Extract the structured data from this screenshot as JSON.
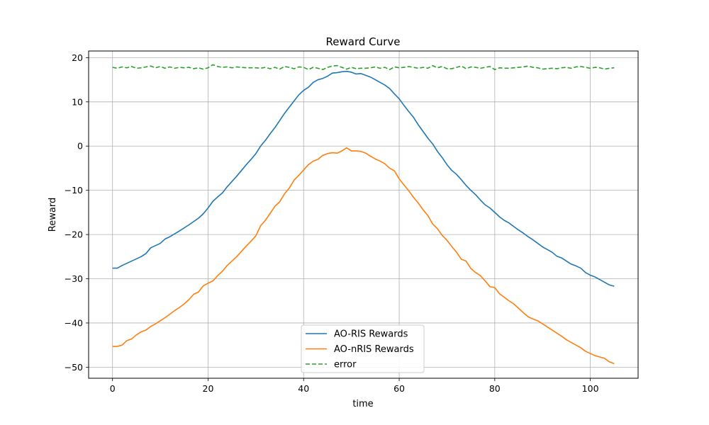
{
  "chart_data": {
    "type": "line",
    "title": "Reward Curve",
    "xlabel": "time",
    "ylabel": "Reward",
    "xlim": [
      -5,
      110
    ],
    "ylim": [
      -52.5,
      21.5
    ],
    "xticks": [
      0,
      20,
      40,
      60,
      80,
      100
    ],
    "yticks": [
      -50,
      -40,
      -30,
      -20,
      -10,
      0,
      10,
      20
    ],
    "grid": true,
    "legend_position": "bottom-center",
    "series": [
      {
        "name": "AO-RIS Rewards",
        "color": "#1f77b4",
        "style": "solid",
        "points": [
          [
            0,
            -27.6
          ],
          [
            1,
            -27.6
          ],
          [
            2,
            -27.0
          ],
          [
            4,
            -26.0
          ],
          [
            6,
            -25.0
          ],
          [
            7,
            -24.3
          ],
          [
            8,
            -23.0
          ],
          [
            10,
            -22.0
          ],
          [
            11,
            -21.0
          ],
          [
            12,
            -20.5
          ],
          [
            14,
            -19.2
          ],
          [
            16,
            -17.8
          ],
          [
            18,
            -16.3
          ],
          [
            19,
            -15.3
          ],
          [
            20,
            -14.0
          ],
          [
            21,
            -12.5
          ],
          [
            22,
            -11.5
          ],
          [
            23,
            -10.6
          ],
          [
            24,
            -9.2
          ],
          [
            25,
            -8.0
          ],
          [
            26,
            -6.8
          ],
          [
            27,
            -5.5
          ],
          [
            28,
            -4.2
          ],
          [
            29,
            -3.0
          ],
          [
            30,
            -1.7
          ],
          [
            31,
            0.0
          ],
          [
            32,
            1.3
          ],
          [
            33,
            2.8
          ],
          [
            34,
            4.2
          ],
          [
            35,
            5.8
          ],
          [
            36,
            7.4
          ],
          [
            37,
            8.8
          ],
          [
            38,
            10.2
          ],
          [
            39,
            11.6
          ],
          [
            40,
            12.6
          ],
          [
            41,
            13.3
          ],
          [
            42,
            14.4
          ],
          [
            43,
            15.0
          ],
          [
            44,
            15.3
          ],
          [
            45,
            15.8
          ],
          [
            46,
            16.5
          ],
          [
            47,
            16.6
          ],
          [
            48,
            16.8
          ],
          [
            49,
            16.9
          ],
          [
            50,
            16.7
          ],
          [
            51,
            16.3
          ],
          [
            52,
            16.4
          ],
          [
            53,
            16.0
          ],
          [
            54,
            15.6
          ],
          [
            55,
            15.0
          ],
          [
            56,
            14.4
          ],
          [
            57,
            13.8
          ],
          [
            58,
            13.0
          ],
          [
            59,
            11.8
          ],
          [
            60,
            10.7
          ],
          [
            61,
            9.2
          ],
          [
            62,
            7.8
          ],
          [
            63,
            6.5
          ],
          [
            64,
            4.8
          ],
          [
            65,
            3.3
          ],
          [
            66,
            1.8
          ],
          [
            67,
            0.5
          ],
          [
            68,
            -1.2
          ],
          [
            69,
            -2.6
          ],
          [
            70,
            -4.2
          ],
          [
            71,
            -5.5
          ],
          [
            72,
            -6.4
          ],
          [
            73,
            -7.6
          ],
          [
            74,
            -8.9
          ],
          [
            75,
            -10.0
          ],
          [
            76,
            -11.0
          ],
          [
            77,
            -12.2
          ],
          [
            78,
            -13.3
          ],
          [
            79,
            -14.0
          ],
          [
            80,
            -15.0
          ],
          [
            81,
            -16.0
          ],
          [
            82,
            -16.8
          ],
          [
            83,
            -17.4
          ],
          [
            84,
            -18.2
          ],
          [
            85,
            -19.0
          ],
          [
            86,
            -19.7
          ],
          [
            87,
            -20.5
          ],
          [
            88,
            -21.2
          ],
          [
            89,
            -22.0
          ],
          [
            90,
            -22.8
          ],
          [
            91,
            -23.4
          ],
          [
            92,
            -24.0
          ],
          [
            93,
            -24.9
          ],
          [
            94,
            -25.3
          ],
          [
            95,
            -26.0
          ],
          [
            96,
            -26.7
          ],
          [
            97,
            -27.1
          ],
          [
            98,
            -27.6
          ],
          [
            99,
            -28.6
          ],
          [
            100,
            -29.2
          ],
          [
            101,
            -29.6
          ],
          [
            102,
            -30.2
          ],
          [
            103,
            -30.8
          ],
          [
            104,
            -31.4
          ],
          [
            105,
            -31.7
          ]
        ]
      },
      {
        "name": "AO-nRIS Rewards",
        "color": "#ff7f0e",
        "style": "solid",
        "points": [
          [
            0,
            -45.3
          ],
          [
            1,
            -45.3
          ],
          [
            2,
            -45.0
          ],
          [
            3,
            -44.0
          ],
          [
            4,
            -43.6
          ],
          [
            5,
            -42.7
          ],
          [
            6,
            -42.0
          ],
          [
            7,
            -41.6
          ],
          [
            8,
            -40.8
          ],
          [
            9,
            -40.2
          ],
          [
            10,
            -39.5
          ],
          [
            11,
            -38.8
          ],
          [
            12,
            -38.0
          ],
          [
            13,
            -37.2
          ],
          [
            14,
            -36.5
          ],
          [
            15,
            -35.7
          ],
          [
            16,
            -34.7
          ],
          [
            17,
            -33.5
          ],
          [
            18,
            -33.0
          ],
          [
            19,
            -31.6
          ],
          [
            20,
            -31.0
          ],
          [
            21,
            -30.5
          ],
          [
            22,
            -29.3
          ],
          [
            23,
            -28.3
          ],
          [
            24,
            -27.0
          ],
          [
            25,
            -26.0
          ],
          [
            26,
            -25.0
          ],
          [
            27,
            -23.8
          ],
          [
            28,
            -22.6
          ],
          [
            29,
            -21.5
          ],
          [
            30,
            -20.3
          ],
          [
            31,
            -18.0
          ],
          [
            32,
            -16.8
          ],
          [
            33,
            -15.2
          ],
          [
            34,
            -13.6
          ],
          [
            35,
            -12.6
          ],
          [
            36,
            -10.8
          ],
          [
            37,
            -9.5
          ],
          [
            38,
            -7.7
          ],
          [
            39,
            -6.6
          ],
          [
            40,
            -5.4
          ],
          [
            41,
            -4.2
          ],
          [
            42,
            -3.4
          ],
          [
            43,
            -3.0
          ],
          [
            44,
            -2.1
          ],
          [
            45,
            -1.7
          ],
          [
            46,
            -1.5
          ],
          [
            47,
            -1.6
          ],
          [
            48,
            -1.1
          ],
          [
            49,
            -0.4
          ],
          [
            50,
            -1.1
          ],
          [
            51,
            -1.1
          ],
          [
            52,
            -1.2
          ],
          [
            53,
            -1.6
          ],
          [
            54,
            -2.3
          ],
          [
            55,
            -2.9
          ],
          [
            56,
            -3.4
          ],
          [
            57,
            -4.0
          ],
          [
            58,
            -5.0
          ],
          [
            59,
            -5.6
          ],
          [
            60,
            -7.4
          ],
          [
            61,
            -8.8
          ],
          [
            62,
            -10.1
          ],
          [
            63,
            -11.6
          ],
          [
            64,
            -12.9
          ],
          [
            65,
            -14.4
          ],
          [
            66,
            -15.7
          ],
          [
            67,
            -17.6
          ],
          [
            68,
            -18.7
          ],
          [
            69,
            -20.2
          ],
          [
            70,
            -21.3
          ],
          [
            71,
            -22.7
          ],
          [
            72,
            -24.0
          ],
          [
            73,
            -25.6
          ],
          [
            74,
            -26.0
          ],
          [
            75,
            -27.7
          ],
          [
            76,
            -28.6
          ],
          [
            77,
            -29.3
          ],
          [
            78,
            -30.5
          ],
          [
            79,
            -31.8
          ],
          [
            80,
            -32.0
          ],
          [
            81,
            -33.4
          ],
          [
            82,
            -34.2
          ],
          [
            83,
            -35.0
          ],
          [
            84,
            -35.7
          ],
          [
            85,
            -36.7
          ],
          [
            86,
            -37.7
          ],
          [
            87,
            -38.6
          ],
          [
            88,
            -39.1
          ],
          [
            89,
            -39.5
          ],
          [
            90,
            -40.2
          ],
          [
            91,
            -40.9
          ],
          [
            92,
            -41.6
          ],
          [
            93,
            -42.3
          ],
          [
            94,
            -43.0
          ],
          [
            95,
            -43.8
          ],
          [
            96,
            -44.4
          ],
          [
            97,
            -45.0
          ],
          [
            98,
            -45.6
          ],
          [
            99,
            -46.4
          ],
          [
            100,
            -46.9
          ],
          [
            101,
            -47.4
          ],
          [
            102,
            -47.7
          ],
          [
            103,
            -48.0
          ],
          [
            104,
            -48.8
          ],
          [
            105,
            -49.2
          ]
        ]
      },
      {
        "name": "error",
        "color": "#2ca02c",
        "style": "dashed",
        "points": [
          [
            0,
            17.8
          ],
          [
            1,
            17.6
          ],
          [
            2,
            17.9
          ],
          [
            3,
            17.7
          ],
          [
            4,
            18.0
          ],
          [
            5,
            17.6
          ],
          [
            6,
            17.7
          ],
          [
            7,
            17.9
          ],
          [
            8,
            18.1
          ],
          [
            9,
            17.7
          ],
          [
            10,
            18.0
          ],
          [
            11,
            17.6
          ],
          [
            12,
            17.9
          ],
          [
            13,
            17.6
          ],
          [
            14,
            17.8
          ],
          [
            15,
            17.7
          ],
          [
            16,
            17.8
          ],
          [
            17,
            17.5
          ],
          [
            18,
            17.7
          ],
          [
            19,
            17.4
          ],
          [
            20,
            17.7
          ],
          [
            21,
            18.4
          ],
          [
            22,
            18.0
          ],
          [
            23,
            17.8
          ],
          [
            24,
            17.9
          ],
          [
            25,
            17.7
          ],
          [
            26,
            17.9
          ],
          [
            27,
            17.8
          ],
          [
            28,
            17.7
          ],
          [
            29,
            17.7
          ],
          [
            30,
            17.7
          ],
          [
            31,
            17.6
          ],
          [
            32,
            17.8
          ],
          [
            33,
            17.5
          ],
          [
            34,
            17.8
          ],
          [
            35,
            17.4
          ],
          [
            36,
            18.0
          ],
          [
            37,
            17.8
          ],
          [
            38,
            17.5
          ],
          [
            39,
            17.9
          ],
          [
            40,
            17.8
          ],
          [
            41,
            17.3
          ],
          [
            42,
            17.8
          ],
          [
            43,
            17.6
          ],
          [
            44,
            17.3
          ],
          [
            45,
            17.8
          ],
          [
            46,
            18.1
          ],
          [
            47,
            18.2
          ],
          [
            48,
            17.8
          ],
          [
            49,
            17.4
          ],
          [
            50,
            17.8
          ],
          [
            51,
            17.5
          ],
          [
            52,
            17.6
          ],
          [
            53,
            17.6
          ],
          [
            54,
            17.7
          ],
          [
            55,
            17.9
          ],
          [
            56,
            17.6
          ],
          [
            57,
            17.8
          ],
          [
            58,
            17.3
          ],
          [
            59,
            17.9
          ],
          [
            60,
            17.7
          ],
          [
            61,
            17.8
          ],
          [
            62,
            18.0
          ],
          [
            63,
            17.8
          ],
          [
            64,
            17.6
          ],
          [
            65,
            17.8
          ],
          [
            66,
            17.6
          ],
          [
            67,
            18.2
          ],
          [
            68,
            17.7
          ],
          [
            69,
            18.0
          ],
          [
            70,
            17.5
          ],
          [
            71,
            17.5
          ],
          [
            72,
            17.8
          ],
          [
            73,
            18.1
          ],
          [
            74,
            17.5
          ],
          [
            75,
            17.9
          ],
          [
            76,
            17.8
          ],
          [
            77,
            17.6
          ],
          [
            78,
            17.8
          ],
          [
            79,
            18.0
          ],
          [
            80,
            17.3
          ],
          [
            81,
            17.7
          ],
          [
            82,
            17.6
          ],
          [
            83,
            17.6
          ],
          [
            84,
            17.7
          ],
          [
            85,
            17.8
          ],
          [
            86,
            17.9
          ],
          [
            87,
            18.1
          ],
          [
            88,
            17.8
          ],
          [
            89,
            17.7
          ],
          [
            90,
            17.4
          ],
          [
            91,
            17.5
          ],
          [
            92,
            17.6
          ],
          [
            93,
            17.5
          ],
          [
            94,
            17.7
          ],
          [
            95,
            17.8
          ],
          [
            96,
            17.6
          ],
          [
            97,
            17.9
          ],
          [
            98,
            18.0
          ],
          [
            99,
            17.8
          ],
          [
            100,
            17.6
          ],
          [
            101,
            17.8
          ],
          [
            102,
            17.7
          ],
          [
            103,
            17.4
          ],
          [
            104,
            17.6
          ],
          [
            105,
            17.7
          ]
        ]
      }
    ]
  }
}
